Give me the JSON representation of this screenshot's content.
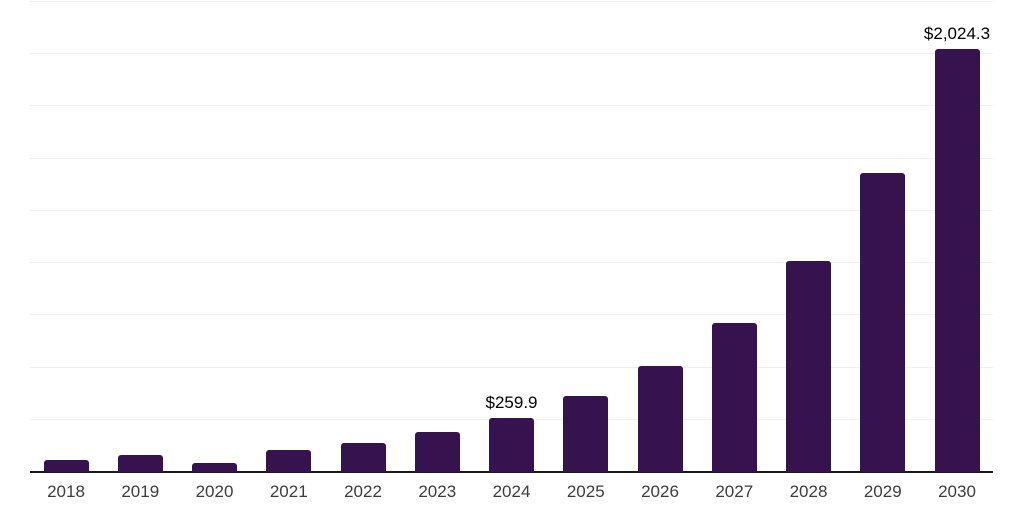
{
  "chart_data": {
    "type": "bar",
    "title": "",
    "xlabel": "",
    "ylabel": "",
    "categories": [
      "2018",
      "2019",
      "2020",
      "2021",
      "2022",
      "2023",
      "2024",
      "2025",
      "2026",
      "2027",
      "2028",
      "2029",
      "2030"
    ],
    "values": [
      59.3,
      79.9,
      45.0,
      103.8,
      139.7,
      192.3,
      259.9,
      365.9,
      506.0,
      713.6,
      1008.0,
      1430.0,
      2024.3
    ],
    "data_labels": [
      "",
      "",
      "",
      "",
      "",
      "",
      "$259.9",
      "",
      "",
      "",
      "",
      "",
      "$2,024.3"
    ],
    "ylim": [
      0,
      2250
    ],
    "gridline_interval": 250,
    "grid": true,
    "legend": "none",
    "colors": {
      "bar": "#36124E",
      "grid": "#F1F1F1",
      "axis": "#1B1B1B",
      "tick_label": "#3C3C3C",
      "data_label": "#000000"
    }
  }
}
